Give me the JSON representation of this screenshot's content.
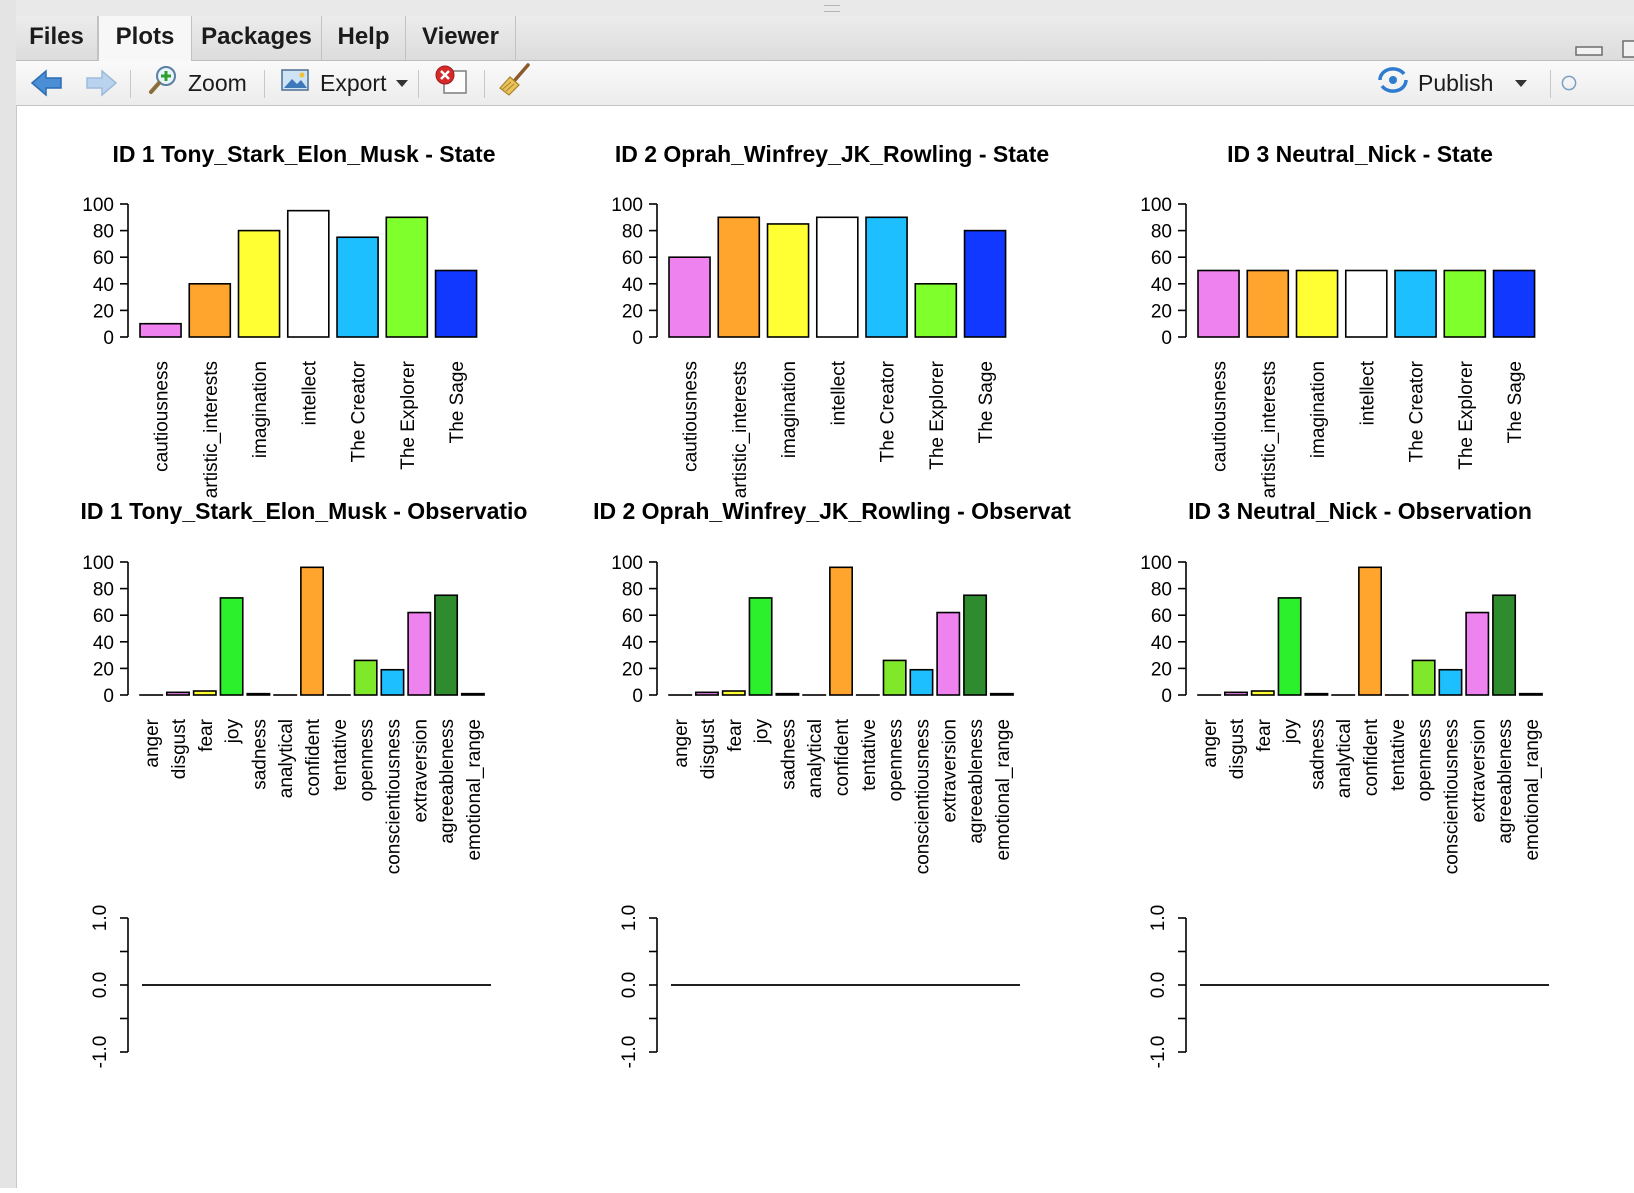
{
  "tabs": [
    {
      "label": "Files",
      "active": false
    },
    {
      "label": "Plots",
      "active": true
    },
    {
      "label": "Packages",
      "active": false
    },
    {
      "label": "Help",
      "active": false
    },
    {
      "label": "Viewer",
      "active": false
    }
  ],
  "toolbar": {
    "zoom_label": "Zoom",
    "export_label": "Export",
    "publish_label": "Publish"
  },
  "colors": {
    "back_arrow": "#4a8fd6",
    "forward_arrow": "#b9d3ee",
    "delete": "#d62a2a",
    "publish": "#2e7bcf"
  },
  "chart_data": [
    {
      "type": "bar",
      "title": "ID  1   Tony_Stark_Elon_Musk - State",
      "categories": [
        "cautiousness",
        "artistic_interests",
        "imagination",
        "intellect",
        "The Creator",
        "The Explorer",
        "The Sage"
      ],
      "values": [
        10,
        40,
        80,
        95,
        75,
        90,
        50
      ],
      "colors": [
        "#ee82ee",
        "#ffa52d",
        "#ffff33",
        "#ffffff",
        "#1ebfff",
        "#7fff2b",
        "#1038ff"
      ],
      "ylim": [
        0,
        100
      ],
      "yticks": [
        "0",
        "20",
        "40",
        "60",
        "80",
        "100"
      ]
    },
    {
      "type": "bar",
      "title": "ID  2   Oprah_Winfrey_JK_Rowling - State",
      "categories": [
        "cautiousness",
        "artistic_interests",
        "imagination",
        "intellect",
        "The Creator",
        "The Explorer",
        "The Sage"
      ],
      "values": [
        60,
        90,
        85,
        90,
        90,
        40,
        80
      ],
      "colors": [
        "#ee82ee",
        "#ffa52d",
        "#ffff33",
        "#ffffff",
        "#1ebfff",
        "#7fff2b",
        "#1038ff"
      ],
      "ylim": [
        0,
        100
      ],
      "yticks": [
        "0",
        "20",
        "40",
        "60",
        "80",
        "100"
      ]
    },
    {
      "type": "bar",
      "title": "ID  3   Neutral_Nick - State",
      "categories": [
        "cautiousness",
        "artistic_interests",
        "imagination",
        "intellect",
        "The Creator",
        "The Explorer",
        "The Sage"
      ],
      "values": [
        50,
        50,
        50,
        50,
        50,
        50,
        50
      ],
      "colors": [
        "#ee82ee",
        "#ffa52d",
        "#ffff33",
        "#ffffff",
        "#1ebfff",
        "#7fff2b",
        "#1038ff"
      ],
      "ylim": [
        0,
        100
      ],
      "yticks": [
        "0",
        "20",
        "40",
        "60",
        "80",
        "100"
      ]
    },
    {
      "type": "bar",
      "title": "ID  1   Tony_Stark_Elon_Musk - Observatio",
      "categories": [
        "anger",
        "disgust",
        "fear",
        "joy",
        "sadness",
        "analytical",
        "confident",
        "tentative",
        "openness",
        "conscientiousness",
        "extraversion",
        "agreeableness",
        "emotional_range"
      ],
      "values": [
        0,
        2,
        3,
        73,
        1,
        0,
        96,
        0,
        26,
        19,
        62,
        75,
        1
      ],
      "colors": [
        "#e05050",
        "#ee82ee",
        "#ffff33",
        "#2bf02b",
        "#1b1b1b",
        "#ffffff",
        "#ffa52d",
        "#ffffff",
        "#7fe82b",
        "#1ebfff",
        "#ee82ee",
        "#2e8b2e",
        "#1b1b1b"
      ],
      "ylim": [
        0,
        100
      ],
      "yticks": [
        "0",
        "20",
        "40",
        "60",
        "80",
        "100"
      ]
    },
    {
      "type": "bar",
      "title": "ID  2   Oprah_Winfrey_JK_Rowling - Observat",
      "categories": [
        "anger",
        "disgust",
        "fear",
        "joy",
        "sadness",
        "analytical",
        "confident",
        "tentative",
        "openness",
        "conscientiousness",
        "extraversion",
        "agreeableness",
        "emotional_range"
      ],
      "values": [
        0,
        2,
        3,
        73,
        1,
        0,
        96,
        0,
        26,
        19,
        62,
        75,
        1
      ],
      "colors": [
        "#e05050",
        "#ee82ee",
        "#ffff33",
        "#2bf02b",
        "#1b1b1b",
        "#ffffff",
        "#ffa52d",
        "#ffffff",
        "#7fe82b",
        "#1ebfff",
        "#ee82ee",
        "#2e8b2e",
        "#1b1b1b"
      ],
      "ylim": [
        0,
        100
      ],
      "yticks": [
        "0",
        "20",
        "40",
        "60",
        "80",
        "100"
      ]
    },
    {
      "type": "bar",
      "title": "ID  3   Neutral_Nick - Observation",
      "categories": [
        "anger",
        "disgust",
        "fear",
        "joy",
        "sadness",
        "analytical",
        "confident",
        "tentative",
        "openness",
        "conscientiousness",
        "extraversion",
        "agreeableness",
        "emotional_range"
      ],
      "values": [
        0,
        2,
        3,
        73,
        1,
        0,
        96,
        0,
        26,
        19,
        62,
        75,
        1
      ],
      "colors": [
        "#e05050",
        "#ee82ee",
        "#ffff33",
        "#2bf02b",
        "#1b1b1b",
        "#ffffff",
        "#ffa52d",
        "#ffffff",
        "#7fe82b",
        "#1ebfff",
        "#ee82ee",
        "#2e8b2e",
        "#1b1b1b"
      ],
      "ylim": [
        0,
        100
      ],
      "yticks": [
        "0",
        "20",
        "40",
        "60",
        "80",
        "100"
      ]
    },
    {
      "type": "line",
      "title": "",
      "x": [
        0,
        1
      ],
      "values": [
        0,
        0
      ],
      "ylim": [
        -1,
        1
      ],
      "yticks": [
        "-1.0",
        "0.0",
        "1.0"
      ]
    },
    {
      "type": "line",
      "title": "",
      "x": [
        0,
        1
      ],
      "values": [
        0,
        0
      ],
      "ylim": [
        -1,
        1
      ],
      "yticks": [
        "-1.0",
        "0.0",
        "1.0"
      ]
    },
    {
      "type": "line",
      "title": "",
      "x": [
        0,
        1
      ],
      "values": [
        0,
        0
      ],
      "ylim": [
        -1,
        1
      ],
      "yticks": [
        "-1.0",
        "0.0",
        "1.0"
      ]
    }
  ]
}
